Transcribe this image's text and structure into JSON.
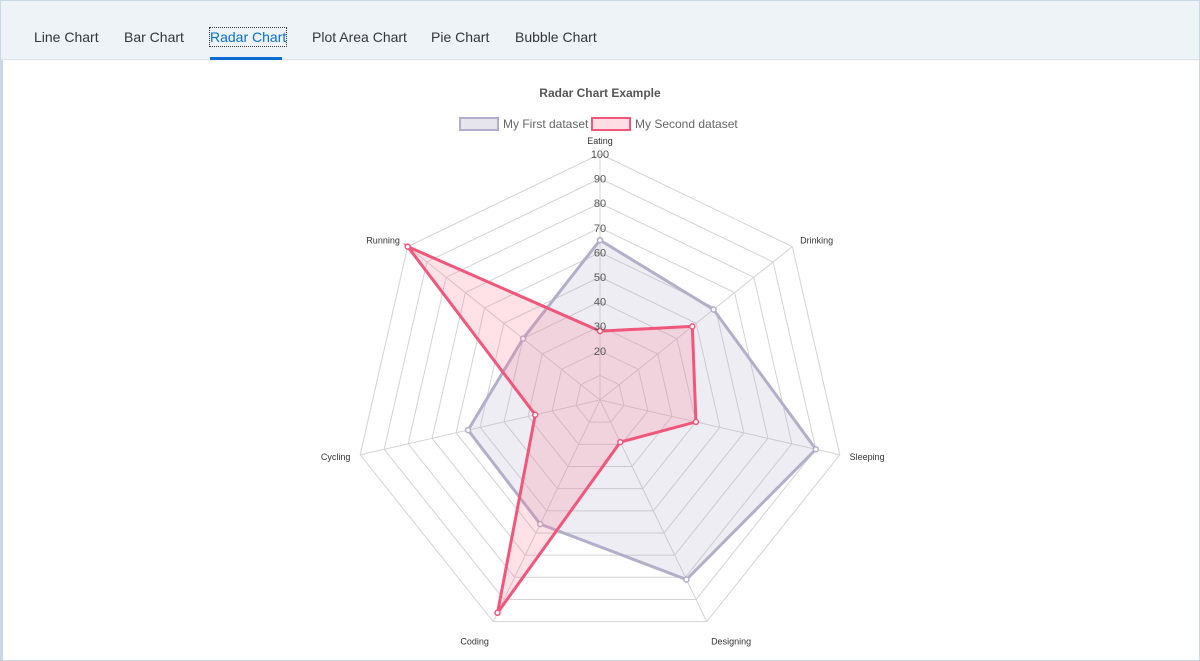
{
  "tabs": [
    {
      "label": "Line Chart",
      "selected": false
    },
    {
      "label": "Bar Chart",
      "selected": false
    },
    {
      "label": "Radar Chart",
      "selected": true
    },
    {
      "label": "Plot Area Chart",
      "selected": false
    },
    {
      "label": "Pie Chart",
      "selected": false
    },
    {
      "label": "Bubble Chart",
      "selected": false
    }
  ],
  "colors": {
    "accent": "#0a6ed1",
    "first_dataset_line": "#b2afc8",
    "first_dataset_fill": "rgba(178,175,200,0.22)",
    "second_dataset_line": "#f0577a",
    "second_dataset_fill": "rgba(255,120,150,0.22)",
    "grid": "#d3d3d3"
  },
  "chart_data": {
    "type": "radar",
    "title": "Radar Chart Example",
    "legend_position": "top",
    "categories": [
      "Eating",
      "Drinking",
      "Sleeping",
      "Designing",
      "Coding",
      "Cycling",
      "Running"
    ],
    "scale": {
      "min": 0,
      "max": 100,
      "step": 10
    },
    "tick_labels": [
      "20",
      "30",
      "40",
      "50",
      "60",
      "70",
      "80",
      "90",
      "100"
    ],
    "series": [
      {
        "name": "My First dataset",
        "values": [
          65,
          59,
          90,
          81,
          56,
          55,
          40
        ]
      },
      {
        "name": "My Second dataset",
        "values": [
          28,
          48,
          40,
          19,
          96,
          27,
          100
        ]
      }
    ]
  }
}
